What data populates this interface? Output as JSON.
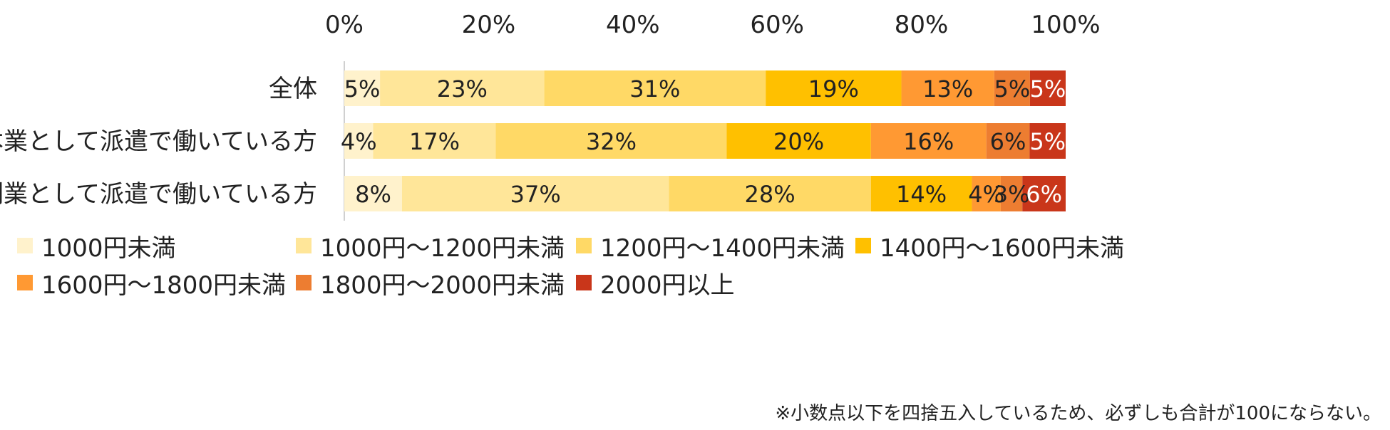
{
  "chart_data": {
    "type": "bar",
    "orientation": "horizontal",
    "stacked": true,
    "x_ticks": [
      "0%",
      "20%",
      "40%",
      "60%",
      "80%",
      "100%"
    ],
    "xlim": [
      0,
      100
    ],
    "categories": [
      "全体",
      "本業として派遣で働いている方",
      "副業として派遣で働いている方"
    ],
    "series": [
      {
        "name": "1000円未満",
        "color": "#FFF2CC",
        "values": [
          5,
          4,
          8
        ],
        "labels": [
          "5%",
          "4%",
          "8%"
        ]
      },
      {
        "name": "1000円～1200円未満",
        "color": "#FFE699",
        "values": [
          23,
          17,
          37
        ],
        "labels": [
          "23%",
          "17%",
          "37%"
        ]
      },
      {
        "name": "1200円～1400円未満",
        "color": "#FFD966",
        "values": [
          31,
          32,
          28
        ],
        "labels": [
          "31%",
          "32%",
          "28%"
        ]
      },
      {
        "name": "1400円～1600円未満",
        "color": "#FFC000",
        "values": [
          19,
          20,
          14
        ],
        "labels": [
          "19%",
          "20%",
          "14%"
        ]
      },
      {
        "name": "1600円～1800円未満",
        "color": "#FF9933",
        "values": [
          13,
          16,
          4
        ],
        "labels": [
          "13%",
          "16%",
          "4%"
        ]
      },
      {
        "name": "1800円～2000円未満",
        "color": "#ED7D31",
        "values": [
          5,
          6,
          3
        ],
        "labels": [
          "5%",
          "6%",
          "3%"
        ]
      },
      {
        "name": "2000円以上",
        "color": "#C9361A",
        "values": [
          5,
          5,
          6
        ],
        "labels": [
          "5%",
          "5%",
          "6%"
        ]
      }
    ],
    "grid": false,
    "legend_position": "bottom",
    "note": "※小数点以下を四捨五入しているため、必ずしも合計が100にならない。"
  }
}
